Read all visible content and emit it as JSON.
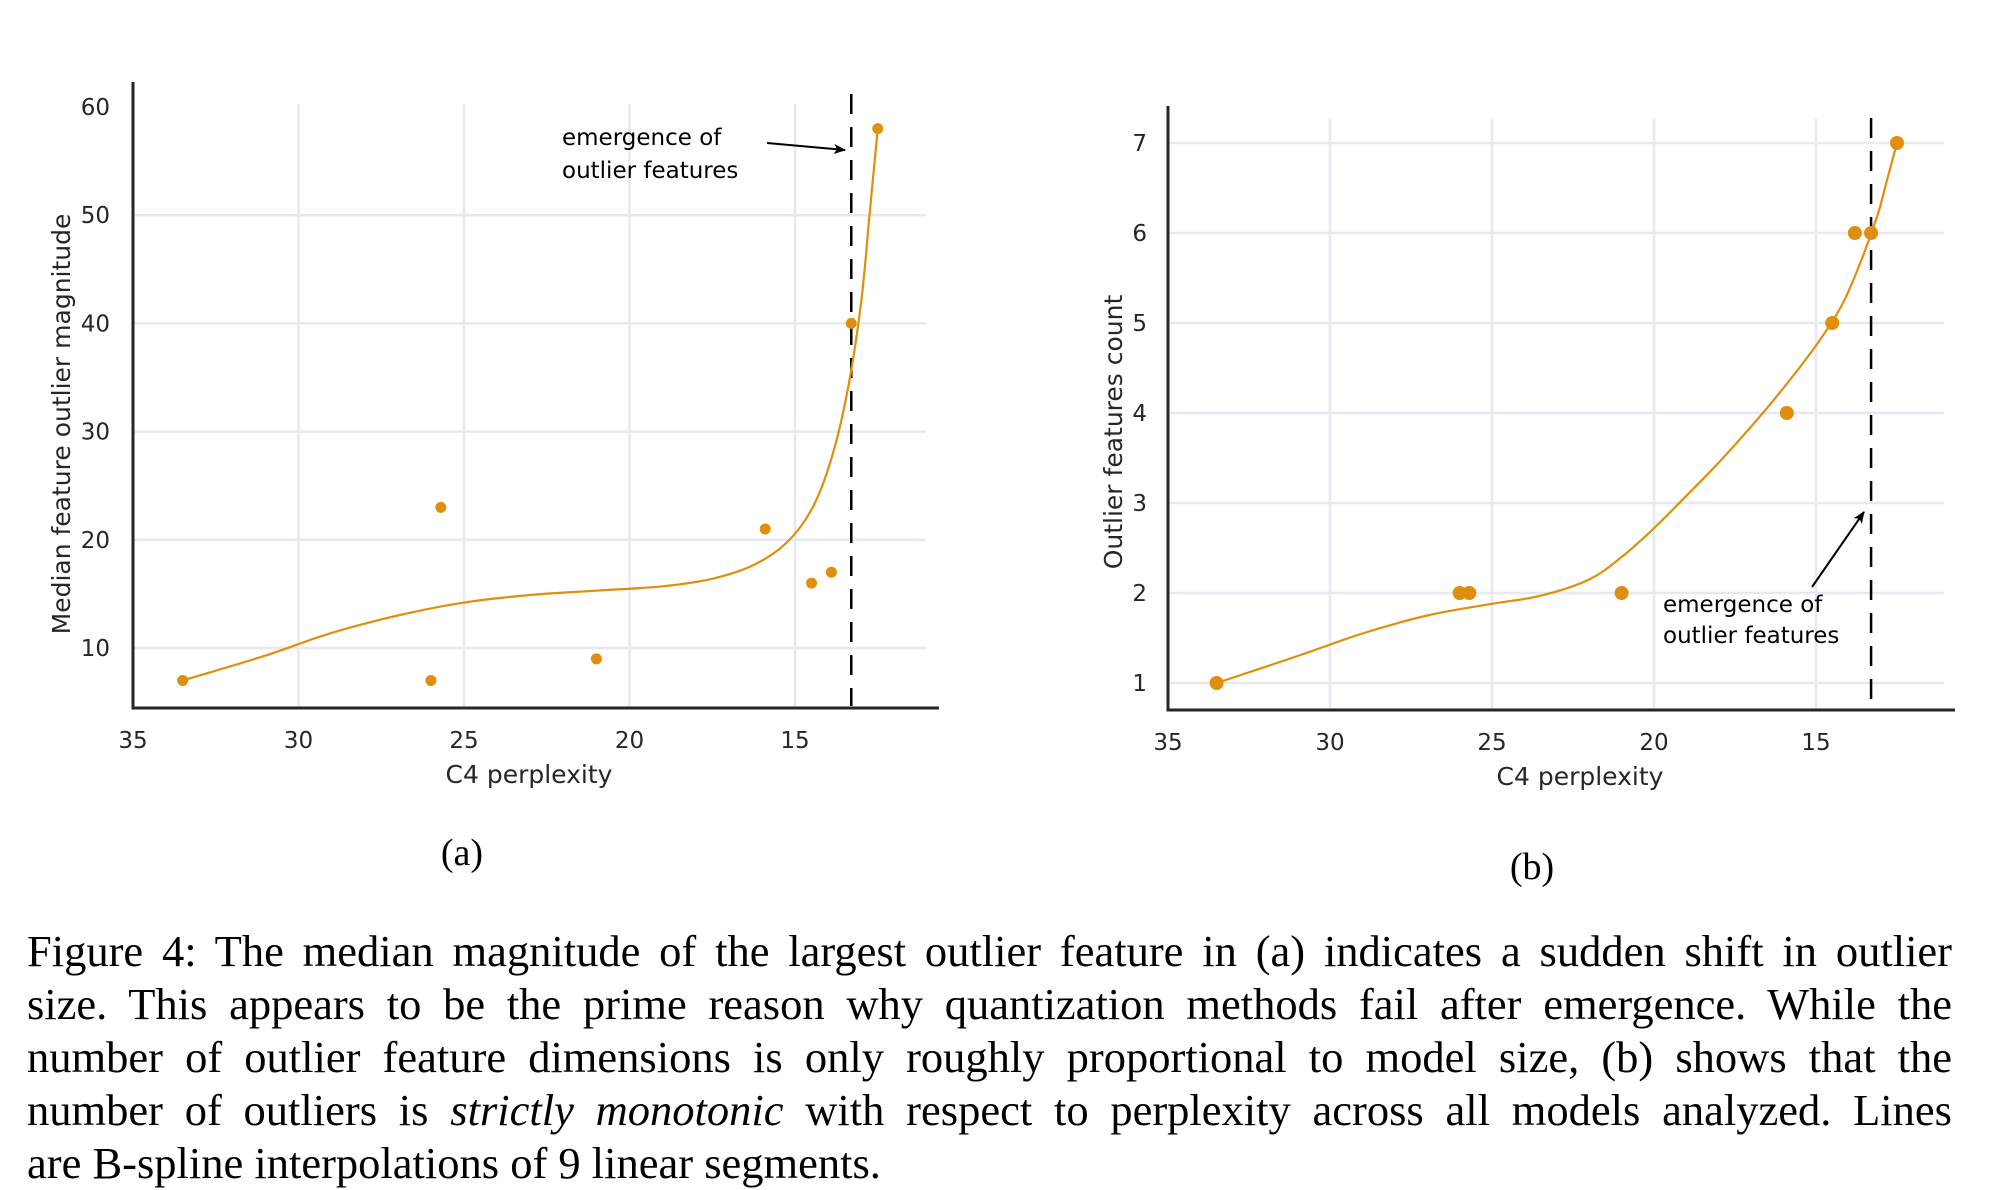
{
  "colors": {
    "marker": "#E08E0B",
    "grid": "#E8E8F0",
    "axis": "#262626",
    "annotation": "#000000"
  },
  "chart_data": [
    {
      "type": "scatter",
      "panel_label": "(a)",
      "xlabel": "C4 perplexity",
      "ylabel": "Median feature outlier magnitude",
      "xlim": [
        35,
        11.2
      ],
      "ylim": [
        4.5,
        60
      ],
      "x_inverted": true,
      "grid": true,
      "xticks": [
        "35",
        "30",
        "25",
        "20",
        "15"
      ],
      "xtick_values": [
        35,
        30,
        25,
        20,
        15
      ],
      "yticks": [
        "10",
        "20",
        "30",
        "40",
        "50",
        "60"
      ],
      "ytick_values": [
        10,
        20,
        30,
        40,
        50,
        60
      ],
      "points": [
        {
          "x": 33.5,
          "y": 7
        },
        {
          "x": 25.7,
          "y": 23
        },
        {
          "x": 26.0,
          "y": 7
        },
        {
          "x": 21.0,
          "y": 9
        },
        {
          "x": 15.9,
          "y": 21
        },
        {
          "x": 14.5,
          "y": 16
        },
        {
          "x": 13.9,
          "y": 17
        },
        {
          "x": 13.3,
          "y": 40
        },
        {
          "x": 12.5,
          "y": 58
        }
      ],
      "fit_line": [
        [
          33.5,
          7
        ],
        [
          31,
          9.3
        ],
        [
          29,
          11.4
        ],
        [
          27,
          13
        ],
        [
          25,
          14.2
        ],
        [
          23,
          14.9
        ],
        [
          21,
          15.3
        ],
        [
          19,
          15.7
        ],
        [
          17.5,
          16.4
        ],
        [
          16.3,
          17.6
        ],
        [
          15.3,
          19.6
        ],
        [
          14.5,
          22.8
        ],
        [
          13.9,
          27.5
        ],
        [
          13.4,
          34
        ],
        [
          13.0,
          42
        ],
        [
          12.75,
          50
        ],
        [
          12.5,
          58
        ]
      ],
      "threshold_x": 13.3,
      "annotation": {
        "lines": [
          "emergence of",
          "outlier features"
        ],
        "arrow_to": "threshold"
      }
    },
    {
      "type": "scatter",
      "panel_label": "(b)",
      "xlabel": "C4 perplexity",
      "ylabel": "Outlier features count",
      "xlim": [
        35,
        10.7
      ],
      "ylim": [
        0.7,
        7.3
      ],
      "x_inverted": true,
      "grid": true,
      "xticks": [
        "35",
        "30",
        "25",
        "20",
        "15"
      ],
      "xtick_values": [
        35,
        30,
        25,
        20,
        15
      ],
      "yticks": [
        "1",
        "2",
        "3",
        "4",
        "5",
        "6",
        "7"
      ],
      "ytick_values": [
        1,
        2,
        3,
        4,
        5,
        6,
        7
      ],
      "points": [
        {
          "x": 33.5,
          "y": 1
        },
        {
          "x": 26.0,
          "y": 2
        },
        {
          "x": 25.7,
          "y": 2
        },
        {
          "x": 21.0,
          "y": 2
        },
        {
          "x": 15.9,
          "y": 4
        },
        {
          "x": 14.5,
          "y": 5
        },
        {
          "x": 13.8,
          "y": 6
        },
        {
          "x": 13.3,
          "y": 6
        },
        {
          "x": 12.5,
          "y": 7
        }
      ],
      "fit_line": [
        [
          33.5,
          1
        ],
        [
          31,
          1.3
        ],
        [
          29,
          1.55
        ],
        [
          27,
          1.75
        ],
        [
          25,
          1.88
        ],
        [
          23.5,
          1.97
        ],
        [
          22,
          2.15
        ],
        [
          21,
          2.4
        ],
        [
          20,
          2.72
        ],
        [
          19,
          3.08
        ],
        [
          18,
          3.45
        ],
        [
          17,
          3.85
        ],
        [
          16,
          4.28
        ],
        [
          15,
          4.75
        ],
        [
          14.2,
          5.2
        ],
        [
          13.6,
          5.7
        ],
        [
          13.1,
          6.2
        ],
        [
          12.8,
          6.6
        ],
        [
          12.5,
          7
        ]
      ],
      "threshold_x": 13.3,
      "annotation": {
        "lines": [
          "emergence of",
          "outlier features"
        ],
        "arrow_to": "threshold"
      }
    }
  ],
  "caption": {
    "lines": [
      "Figure 4: The median magnitude of the largest outlier feature in (a) indicates a sudden shift in outlier",
      "size. This appears to be the prime reason why quantization methods fail after emergence. While the",
      "number of outlier feature dimensions is only roughly proportional to model size, (b) shows that the"
    ],
    "line4_before": "number of outliers is ",
    "line4_italic": "strictly monotonic",
    "line4_after": " with respect to perplexity across all models analyzed. Lines",
    "line5": "are B-spline interpolations of 9 linear segments."
  }
}
